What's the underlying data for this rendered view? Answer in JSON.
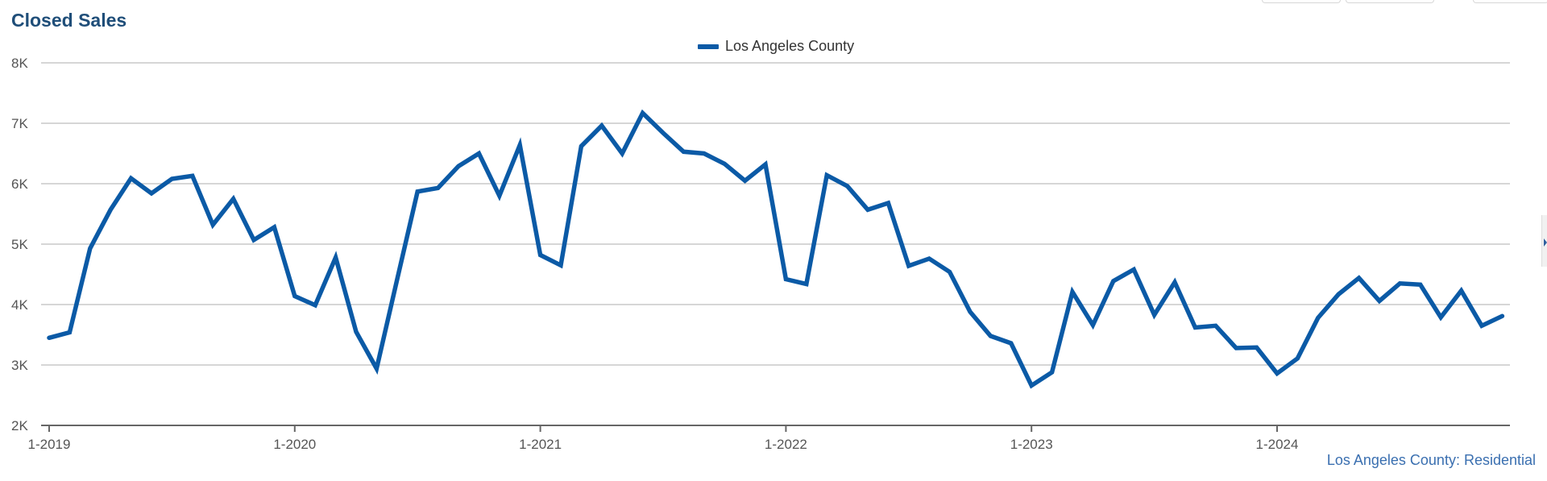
{
  "title": "Closed Sales",
  "caption": "Los Angeles County: Residential",
  "colors": {
    "series": "#0b5aa6",
    "title": "#1f4e79",
    "caption": "#3a6fb0"
  },
  "chart_data": {
    "type": "line",
    "title": "Closed Sales",
    "xlabel": "",
    "ylabel": "",
    "ylim": [
      2000,
      8000
    ],
    "yticks": [
      {
        "value": 2000,
        "label": "2K"
      },
      {
        "value": 3000,
        "label": "3K"
      },
      {
        "value": 4000,
        "label": "4K"
      },
      {
        "value": 5000,
        "label": "5K"
      },
      {
        "value": 6000,
        "label": "6K"
      },
      {
        "value": 7000,
        "label": "7K"
      },
      {
        "value": 8000,
        "label": "8K"
      }
    ],
    "xticks": [
      {
        "index": 0,
        "label": "1-2019"
      },
      {
        "index": 12,
        "label": "1-2020"
      },
      {
        "index": 24,
        "label": "1-2021"
      },
      {
        "index": 36,
        "label": "1-2022"
      },
      {
        "index": 48,
        "label": "1-2023"
      },
      {
        "index": 60,
        "label": "1-2024"
      }
    ],
    "x": [
      "1-2019",
      "2-2019",
      "3-2019",
      "4-2019",
      "5-2019",
      "6-2019",
      "7-2019",
      "8-2019",
      "9-2019",
      "10-2019",
      "11-2019",
      "12-2019",
      "1-2020",
      "2-2020",
      "3-2020",
      "4-2020",
      "5-2020",
      "6-2020",
      "7-2020",
      "8-2020",
      "9-2020",
      "10-2020",
      "11-2020",
      "12-2020",
      "1-2021",
      "2-2021",
      "3-2021",
      "4-2021",
      "5-2021",
      "6-2021",
      "7-2021",
      "8-2021",
      "9-2021",
      "10-2021",
      "11-2021",
      "12-2021",
      "1-2022",
      "2-2022",
      "3-2022",
      "4-2022",
      "5-2022",
      "6-2022",
      "7-2022",
      "8-2022",
      "9-2022",
      "10-2022",
      "11-2022",
      "12-2022",
      "1-2023",
      "2-2023",
      "3-2023",
      "4-2023",
      "5-2023",
      "6-2023",
      "7-2023",
      "8-2023",
      "9-2023",
      "10-2023",
      "11-2023",
      "12-2023",
      "1-2024",
      "2-2024",
      "3-2024",
      "4-2024",
      "5-2024",
      "6-2024",
      "7-2024",
      "8-2024",
      "9-2024",
      "10-2024",
      "11-2024",
      "12-2024"
    ],
    "series": [
      {
        "name": "Los Angeles County",
        "color": "#0b5aa6",
        "values": [
          3450,
          3540,
          4930,
          5570,
          6090,
          5840,
          6080,
          6130,
          5320,
          5750,
          5070,
          5280,
          4140,
          3990,
          4780,
          3550,
          2940,
          4410,
          5870,
          5930,
          6290,
          6500,
          5800,
          6640,
          4820,
          4650,
          6620,
          6960,
          6500,
          7170,
          6840,
          6530,
          6500,
          6330,
          6050,
          6320,
          4420,
          4340,
          6140,
          5960,
          5570,
          5680,
          4640,
          4760,
          4540,
          3880,
          3480,
          3360,
          2660,
          2880,
          4210,
          3660,
          4390,
          4580,
          3830,
          4370,
          3620,
          3650,
          3280,
          3290,
          2860,
          3110,
          3780,
          4170,
          4440,
          4060,
          4350,
          4330,
          3790,
          4230,
          3650,
          3810
        ]
      }
    ],
    "legend": {
      "position": "top-center"
    },
    "grid": true
  }
}
